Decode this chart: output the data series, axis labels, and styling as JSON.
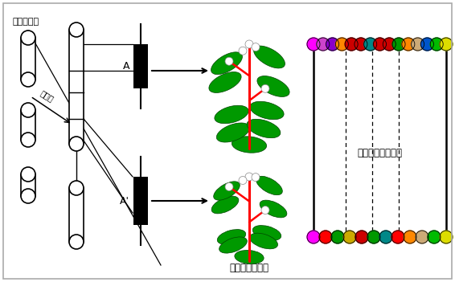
{
  "bg_color": "#ffffff",
  "label_ijuden": "遅伝子重複",
  "label_copy": "コピー",
  "label_A": "A",
  "label_Aprime": "A'",
  "label_hatsugen": "発現部位の変化",
  "label_tanpaku": "タンパク質の変化",
  "top_beads": [
    "#ff00ff",
    "#cc44cc",
    "#8800cc",
    "#ff8800",
    "#cc0000",
    "#cc0000",
    "#008888",
    "#cc0000",
    "#cc0000",
    "#009900",
    "#ff8800",
    "#ccaa77",
    "#0055cc",
    "#00bb00",
    "#dddd00"
  ],
  "bottom_beads": [
    "#ff00ff",
    "#ff0000",
    "#009900",
    "#ccaa00",
    "#cc0000",
    "#009900",
    "#008888",
    "#ff0000",
    "#ff8800",
    "#ccaa77",
    "#00bb00",
    "#dddd00"
  ],
  "fig_width": 5.66,
  "fig_height": 3.51
}
